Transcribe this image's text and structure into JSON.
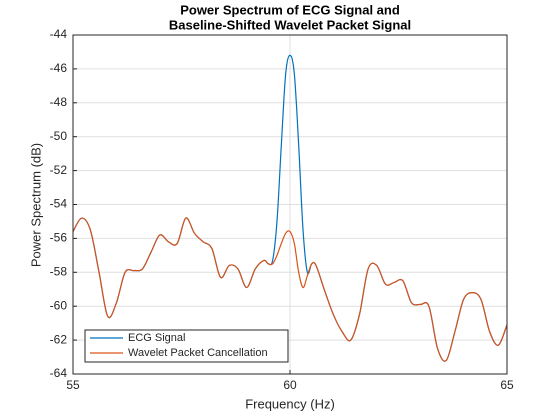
{
  "chart_data": {
    "type": "line",
    "title": [
      "Power Spectrum of ECG Signal and",
      "Baseline-Shifted Wavelet Packet Signal"
    ],
    "x_label": "Frequency (Hz)",
    "y_label": "Power Spectrum (dB)",
    "x": [
      55,
      55.2,
      55.4,
      55.6,
      55.8,
      56.0,
      56.2,
      56.4,
      56.6,
      56.8,
      57.0,
      57.2,
      57.4,
      57.6,
      57.8,
      58.0,
      58.2,
      58.4,
      58.6,
      58.8,
      59.0,
      59.2,
      59.4,
      59.5,
      59.6,
      59.7,
      59.8,
      59.9,
      60.0,
      60.1,
      60.2,
      60.3,
      60.4,
      60.5,
      60.6,
      60.8,
      61.0,
      61.2,
      61.4,
      61.6,
      61.8,
      62.0,
      62.2,
      62.4,
      62.6,
      62.8,
      63.0,
      63.2,
      63.4,
      63.6,
      63.8,
      64.0,
      64.2,
      64.4,
      64.6,
      64.8,
      65.0
    ],
    "series": [
      {
        "name": "ECG Signal",
        "color": "#0072bd",
        "values": [
          -55.6,
          -54.8,
          -55.5,
          -58.0,
          -60.6,
          -59.8,
          -58.0,
          -57.9,
          -57.8,
          -56.8,
          -55.8,
          -56.2,
          -56.3,
          -54.8,
          -55.7,
          -56.2,
          -56.6,
          -58.3,
          -57.6,
          -57.8,
          -58.9,
          -57.8,
          -57.3,
          -57.5,
          -57.3,
          -55.0,
          -50.5,
          -46.3,
          -45.2,
          -46.3,
          -50.5,
          -55.5,
          -58.0,
          -57.5,
          -57.6,
          -59.1,
          -60.5,
          -61.5,
          -62.0,
          -60.5,
          -57.8,
          -57.6,
          -58.7,
          -58.6,
          -58.5,
          -59.8,
          -59.9,
          -60.0,
          -62.5,
          -63.2,
          -61.5,
          -59.6,
          -59.2,
          -59.6,
          -61.5,
          -62.3,
          -61.1
        ]
      },
      {
        "name": "Wavelet Packet Cancellation",
        "color": "#d95319",
        "values": [
          -55.6,
          -54.8,
          -55.5,
          -58.0,
          -60.6,
          -59.8,
          -58.0,
          -57.9,
          -57.8,
          -56.8,
          -55.8,
          -56.2,
          -56.3,
          -54.8,
          -55.7,
          -56.2,
          -56.6,
          -58.3,
          -57.6,
          -57.8,
          -58.9,
          -57.8,
          -57.3,
          -57.5,
          -57.5,
          -57.0,
          -56.3,
          -55.7,
          -55.6,
          -56.3,
          -58.0,
          -58.9,
          -58.2,
          -57.5,
          -57.6,
          -59.1,
          -60.5,
          -61.5,
          -62.0,
          -60.5,
          -57.8,
          -57.6,
          -58.7,
          -58.6,
          -58.5,
          -59.8,
          -59.9,
          -60.0,
          -62.5,
          -63.2,
          -61.5,
          -59.6,
          -59.2,
          -59.6,
          -61.5,
          -62.3,
          -61.1
        ]
      }
    ],
    "xlim": [
      55,
      65
    ],
    "xticks": [
      55,
      60,
      65
    ],
    "ylim": [
      -64,
      -44
    ],
    "yticks": [
      -64,
      -62,
      -60,
      -58,
      -56,
      -54,
      -52,
      -50,
      -48,
      -46,
      -44
    ],
    "grid": true,
    "legend": "lower left"
  }
}
